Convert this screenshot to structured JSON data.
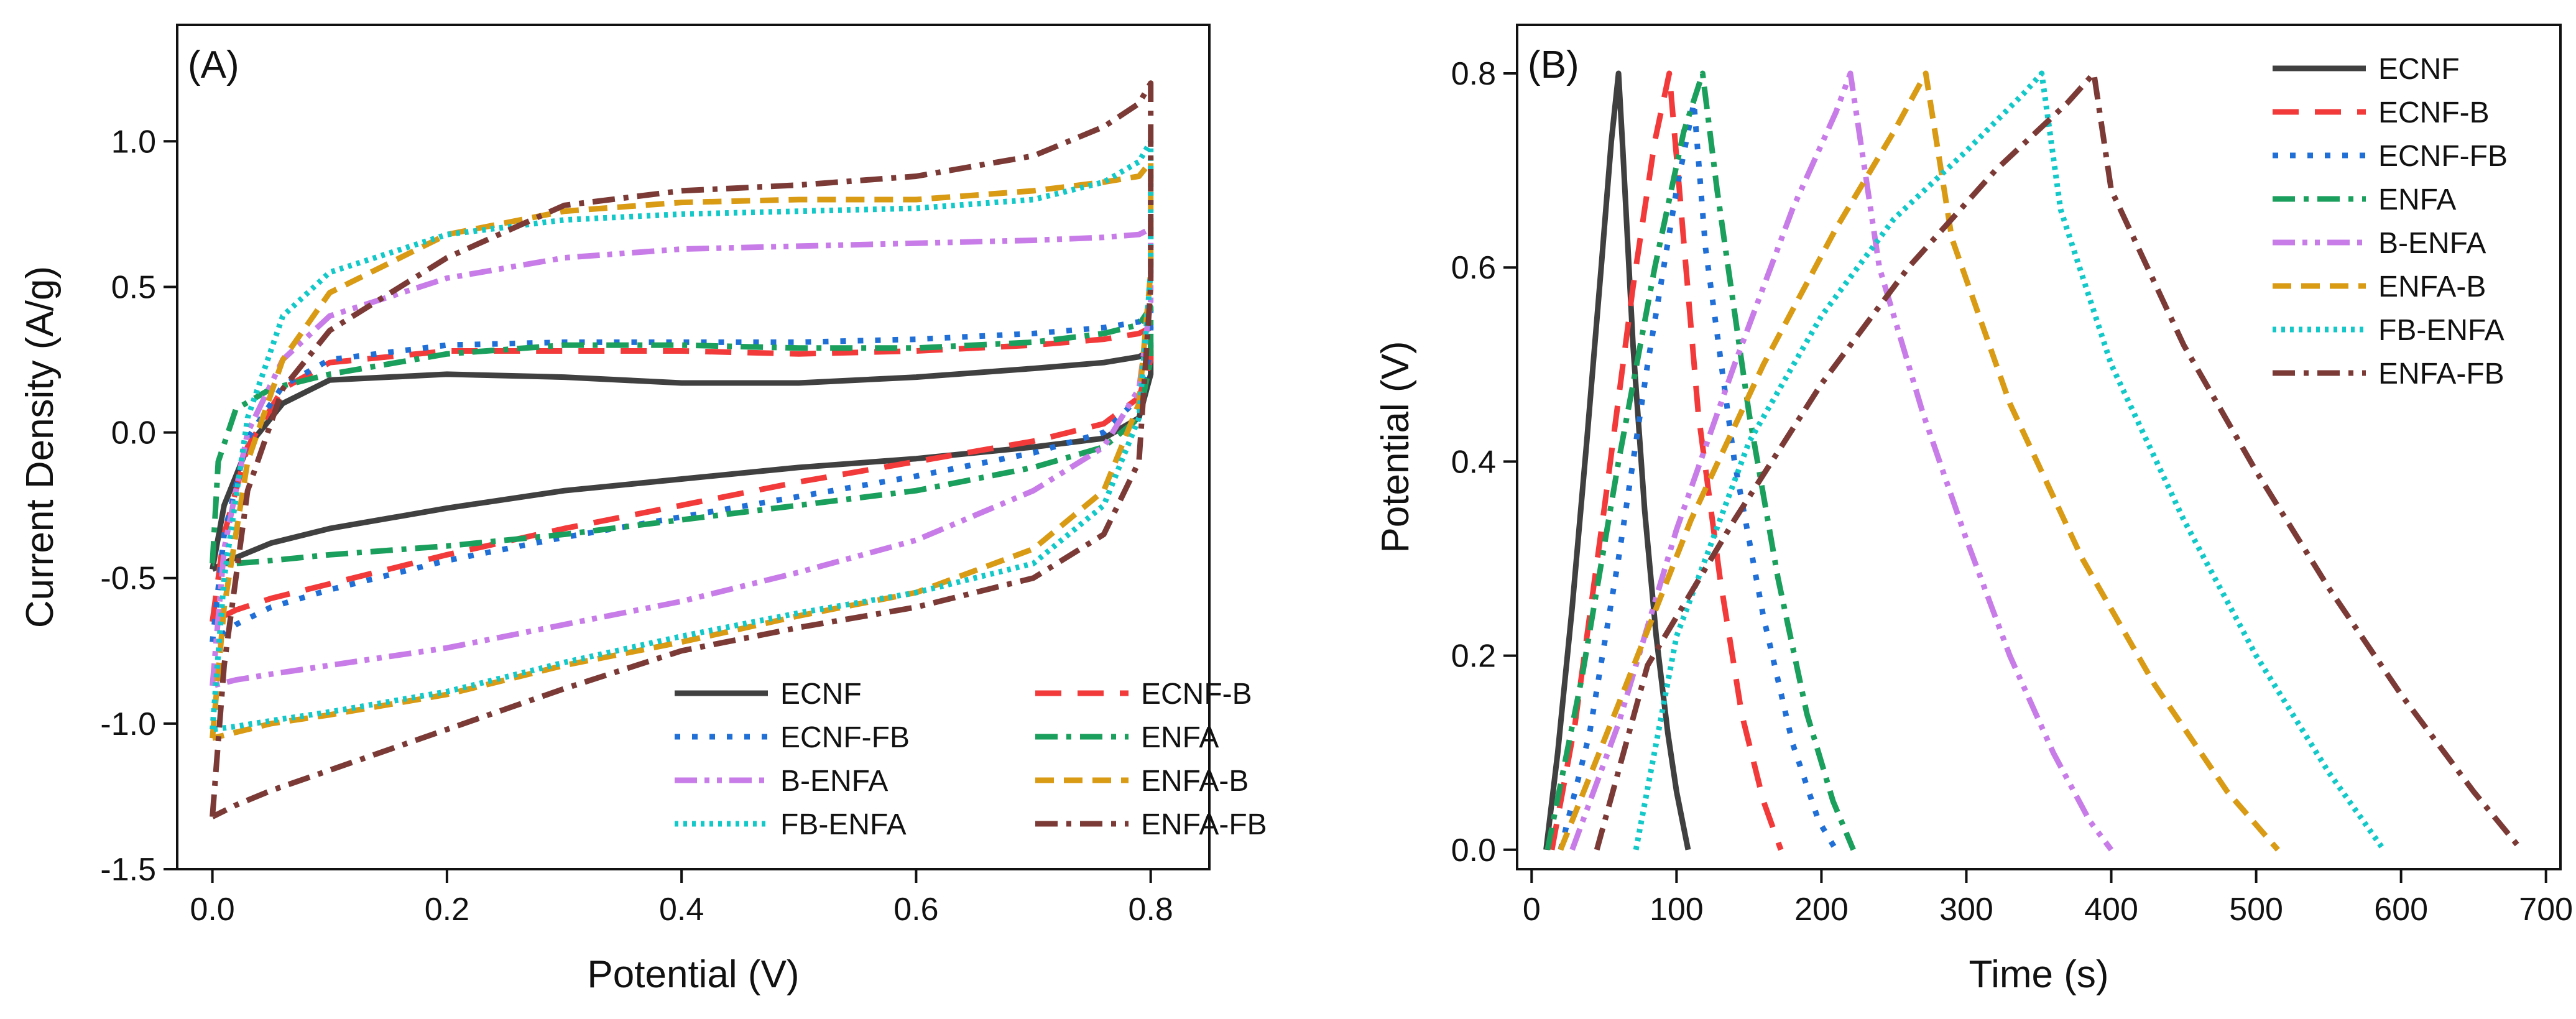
{
  "chart_data": [
    {
      "type": "line",
      "panel_label": "(A)",
      "xlabel": "Potential (V)",
      "ylabel": "Current Density (A/g)",
      "xlim": [
        -0.03,
        0.85
      ],
      "ylim": [
        -1.5,
        1.4
      ],
      "xticks": [
        0.0,
        0.2,
        0.4,
        0.6,
        0.8
      ],
      "xtick_labels": [
        "0.0",
        "0.2",
        "0.4",
        "0.6",
        "0.8"
      ],
      "yticks": [
        -1.5,
        -1.0,
        -0.5,
        0.0,
        0.5,
        1.0
      ],
      "ytick_labels": [
        "-1.5",
        "-1.0",
        "-0.5",
        "0.0",
        "0.5",
        "1.0"
      ],
      "legend": {
        "placement": "bottom-right",
        "columns": 2
      },
      "series": [
        {
          "name": "ECNF",
          "color": "#404040",
          "dash": "solid",
          "x": [
            0,
            0.01,
            0.03,
            0.06,
            0.1,
            0.2,
            0.3,
            0.4,
            0.5,
            0.6,
            0.7,
            0.76,
            0.79,
            0.8,
            0.8,
            0.79,
            0.76,
            0.7,
            0.6,
            0.5,
            0.4,
            0.3,
            0.2,
            0.1,
            0.05,
            0.02,
            0
          ],
          "y": [
            -0.47,
            -0.25,
            -0.05,
            0.1,
            0.18,
            0.2,
            0.19,
            0.17,
            0.17,
            0.19,
            0.22,
            0.24,
            0.26,
            0.28,
            0.2,
            0.05,
            -0.02,
            -0.05,
            -0.09,
            -0.12,
            -0.16,
            -0.2,
            -0.26,
            -0.33,
            -0.38,
            -0.43,
            -0.47
          ]
        },
        {
          "name": "ECNF-B",
          "color": "#f23a3a",
          "dash": "longdash",
          "x": [
            0,
            0.01,
            0.03,
            0.06,
            0.1,
            0.2,
            0.3,
            0.4,
            0.5,
            0.6,
            0.7,
            0.76,
            0.79,
            0.8,
            0.8,
            0.79,
            0.76,
            0.7,
            0.6,
            0.5,
            0.4,
            0.3,
            0.2,
            0.1,
            0.05,
            0.02,
            0
          ],
          "y": [
            -0.65,
            -0.35,
            -0.05,
            0.15,
            0.24,
            0.28,
            0.28,
            0.28,
            0.27,
            0.28,
            0.3,
            0.32,
            0.34,
            0.36,
            0.25,
            0.12,
            0.03,
            -0.03,
            -0.1,
            -0.17,
            -0.25,
            -0.33,
            -0.42,
            -0.52,
            -0.57,
            -0.61,
            -0.65
          ]
        },
        {
          "name": "ECNF-FB",
          "color": "#1f6fd6",
          "dash": "dot",
          "x": [
            0,
            0.01,
            0.03,
            0.06,
            0.1,
            0.2,
            0.3,
            0.4,
            0.5,
            0.6,
            0.7,
            0.76,
            0.79,
            0.8,
            0.8,
            0.79,
            0.76,
            0.7,
            0.6,
            0.5,
            0.4,
            0.3,
            0.2,
            0.1,
            0.05,
            0.02,
            0
          ],
          "y": [
            -0.72,
            -0.35,
            -0.02,
            0.16,
            0.25,
            0.3,
            0.31,
            0.31,
            0.31,
            0.32,
            0.34,
            0.36,
            0.38,
            0.42,
            0.28,
            0.12,
            0.0,
            -0.07,
            -0.15,
            -0.22,
            -0.29,
            -0.36,
            -0.44,
            -0.54,
            -0.6,
            -0.66,
            -0.72
          ]
        },
        {
          "name": "ENFA",
          "color": "#1a9f5c",
          "dash": "dashdot",
          "x": [
            0,
            0.005,
            0.02,
            0.05,
            0.1,
            0.2,
            0.3,
            0.4,
            0.5,
            0.6,
            0.7,
            0.76,
            0.79,
            0.8,
            0.8,
            0.79,
            0.76,
            0.7,
            0.6,
            0.5,
            0.4,
            0.3,
            0.2,
            0.1,
            0.05,
            0.02,
            0
          ],
          "y": [
            -0.45,
            -0.1,
            0.08,
            0.15,
            0.2,
            0.27,
            0.3,
            0.3,
            0.29,
            0.29,
            0.31,
            0.34,
            0.37,
            0.43,
            0.25,
            0.05,
            -0.05,
            -0.12,
            -0.2,
            -0.25,
            -0.3,
            -0.35,
            -0.39,
            -0.42,
            -0.44,
            -0.45,
            -0.45
          ]
        },
        {
          "name": "B-ENFA",
          "color": "#c77ce8",
          "dash": "dashdotdot",
          "x": [
            0,
            0.01,
            0.03,
            0.06,
            0.1,
            0.2,
            0.3,
            0.4,
            0.5,
            0.6,
            0.7,
            0.76,
            0.79,
            0.8,
            0.8,
            0.79,
            0.76,
            0.7,
            0.6,
            0.5,
            0.4,
            0.3,
            0.2,
            0.1,
            0.05,
            0.02,
            0
          ],
          "y": [
            -0.87,
            -0.4,
            0.0,
            0.25,
            0.4,
            0.53,
            0.6,
            0.63,
            0.64,
            0.65,
            0.66,
            0.67,
            0.68,
            0.7,
            0.45,
            0.15,
            -0.05,
            -0.2,
            -0.37,
            -0.48,
            -0.58,
            -0.66,
            -0.74,
            -0.8,
            -0.83,
            -0.85,
            -0.87
          ]
        },
        {
          "name": "ENFA-B",
          "color": "#d99a14",
          "dash": "dash",
          "x": [
            0,
            0.01,
            0.03,
            0.06,
            0.1,
            0.2,
            0.3,
            0.4,
            0.5,
            0.6,
            0.7,
            0.76,
            0.79,
            0.8,
            0.8,
            0.79,
            0.76,
            0.7,
            0.6,
            0.5,
            0.4,
            0.3,
            0.2,
            0.1,
            0.05,
            0.02,
            0
          ],
          "y": [
            -1.05,
            -0.6,
            -0.1,
            0.25,
            0.48,
            0.68,
            0.76,
            0.79,
            0.8,
            0.8,
            0.83,
            0.86,
            0.88,
            0.93,
            0.55,
            0.1,
            -0.2,
            -0.4,
            -0.55,
            -0.63,
            -0.72,
            -0.8,
            -0.9,
            -0.97,
            -1.0,
            -1.03,
            -1.05
          ]
        },
        {
          "name": "FB-ENFA",
          "color": "#12c8c8",
          "dash": "smalldot",
          "x": [
            0,
            0.01,
            0.03,
            0.06,
            0.1,
            0.2,
            0.3,
            0.4,
            0.5,
            0.6,
            0.7,
            0.76,
            0.79,
            0.8,
            0.8,
            0.79,
            0.76,
            0.7,
            0.6,
            0.5,
            0.4,
            0.3,
            0.2,
            0.1,
            0.05,
            0.02,
            0
          ],
          "y": [
            -1.02,
            -0.5,
            0.05,
            0.4,
            0.55,
            0.68,
            0.73,
            0.75,
            0.76,
            0.77,
            0.8,
            0.86,
            0.93,
            1.0,
            0.55,
            0.05,
            -0.25,
            -0.45,
            -0.55,
            -0.62,
            -0.7,
            -0.79,
            -0.89,
            -0.96,
            -0.99,
            -1.01,
            -1.02
          ]
        },
        {
          "name": "ENFA-FB",
          "color": "#7b3a36",
          "dash": "dashdot",
          "x": [
            0,
            0.01,
            0.03,
            0.06,
            0.1,
            0.2,
            0.3,
            0.4,
            0.5,
            0.6,
            0.7,
            0.76,
            0.79,
            0.8,
            0.8,
            0.79,
            0.76,
            0.7,
            0.6,
            0.5,
            0.4,
            0.3,
            0.2,
            0.1,
            0.05,
            0.02,
            0
          ],
          "y": [
            -1.32,
            -0.8,
            -0.2,
            0.15,
            0.35,
            0.6,
            0.78,
            0.83,
            0.85,
            0.88,
            0.95,
            1.05,
            1.13,
            1.2,
            0.5,
            -0.1,
            -0.35,
            -0.5,
            -0.6,
            -0.67,
            -0.75,
            -0.88,
            -1.02,
            -1.16,
            -1.23,
            -1.28,
            -1.32
          ]
        }
      ]
    },
    {
      "type": "line",
      "panel_label": "(B)",
      "xlabel": "Time (s)",
      "ylabel": "Potential (V)",
      "xlim": [
        -10,
        710
      ],
      "ylim": [
        -0.02,
        0.85
      ],
      "xticks": [
        0,
        100,
        200,
        300,
        400,
        500,
        600,
        700
      ],
      "xtick_labels": [
        "0",
        "100",
        "200",
        "300",
        "400",
        "500",
        "600",
        "700"
      ],
      "yticks": [
        0.0,
        0.2,
        0.4,
        0.6,
        0.8
      ],
      "ytick_labels": [
        "0.0",
        "0.2",
        "0.4",
        "0.6",
        "0.8"
      ],
      "legend": {
        "placement": "top-right",
        "columns": 1
      },
      "series": [
        {
          "name": "ECNF",
          "color": "#404040",
          "dash": "solid",
          "x": [
            10,
            18,
            28,
            38,
            48,
            55,
            60,
            63,
            70,
            78,
            86,
            94,
            100,
            108
          ],
          "y": [
            0.0,
            0.1,
            0.25,
            0.42,
            0.6,
            0.73,
            0.8,
            0.72,
            0.52,
            0.35,
            0.22,
            0.12,
            0.06,
            0.0
          ]
        },
        {
          "name": "ECNF-B",
          "color": "#f23a3a",
          "dash": "longdash",
          "x": [
            14,
            30,
            50,
            70,
            85,
            95,
            102,
            115,
            130,
            145,
            160,
            172
          ],
          "y": [
            0.0,
            0.13,
            0.35,
            0.58,
            0.73,
            0.8,
            0.68,
            0.45,
            0.28,
            0.14,
            0.05,
            0.0
          ]
        },
        {
          "name": "ECNF-FB",
          "color": "#1f6fd6",
          "dash": "dot",
          "x": [
            20,
            40,
            60,
            80,
            100,
            112,
            120,
            140,
            160,
            180,
            198,
            210
          ],
          "y": [
            0.0,
            0.12,
            0.3,
            0.5,
            0.68,
            0.77,
            0.62,
            0.4,
            0.24,
            0.11,
            0.03,
            0.0
          ]
        },
        {
          "name": "ENFA",
          "color": "#1a9f5c",
          "dash": "dashdot",
          "x": [
            11,
            35,
            60,
            85,
            105,
            118,
            128,
            150,
            170,
            190,
            208,
            222
          ],
          "y": [
            0.0,
            0.18,
            0.4,
            0.6,
            0.74,
            0.8,
            0.68,
            0.45,
            0.28,
            0.14,
            0.05,
            0.0
          ]
        },
        {
          "name": "B-ENFA",
          "color": "#c77ce8",
          "dash": "dashdotdot",
          "x": [
            28,
            60,
            100,
            140,
            180,
            210,
            220,
            240,
            270,
            300,
            330,
            360,
            385,
            400
          ],
          "y": [
            0.0,
            0.13,
            0.33,
            0.5,
            0.66,
            0.76,
            0.8,
            0.6,
            0.45,
            0.32,
            0.2,
            0.1,
            0.03,
            0.0
          ]
        },
        {
          "name": "ENFA-B",
          "color": "#d99a14",
          "dash": "dash",
          "x": [
            20,
            60,
            110,
            160,
            210,
            250,
            272,
            290,
            330,
            380,
            430,
            480,
            515
          ],
          "y": [
            0.0,
            0.15,
            0.34,
            0.5,
            0.64,
            0.74,
            0.8,
            0.63,
            0.46,
            0.3,
            0.17,
            0.06,
            0.0
          ]
        },
        {
          "name": "FB-ENFA",
          "color": "#12c8c8",
          "dash": "smalldot",
          "x": [
            72,
            100,
            150,
            200,
            250,
            300,
            340,
            352,
            365,
            400,
            450,
            500,
            550,
            588
          ],
          "y": [
            0.0,
            0.22,
            0.42,
            0.55,
            0.65,
            0.72,
            0.78,
            0.8,
            0.66,
            0.5,
            0.34,
            0.2,
            0.08,
            0.0
          ]
        },
        {
          "name": "ENFA-FB",
          "color": "#7b3a36",
          "dash": "dashdot",
          "x": [
            45,
            80,
            140,
            200,
            260,
            320,
            370,
            388,
            400,
            450,
            500,
            550,
            600,
            650,
            683
          ],
          "y": [
            0.0,
            0.19,
            0.34,
            0.48,
            0.6,
            0.7,
            0.77,
            0.8,
            0.68,
            0.52,
            0.39,
            0.27,
            0.16,
            0.06,
            0.0
          ]
        }
      ]
    }
  ]
}
